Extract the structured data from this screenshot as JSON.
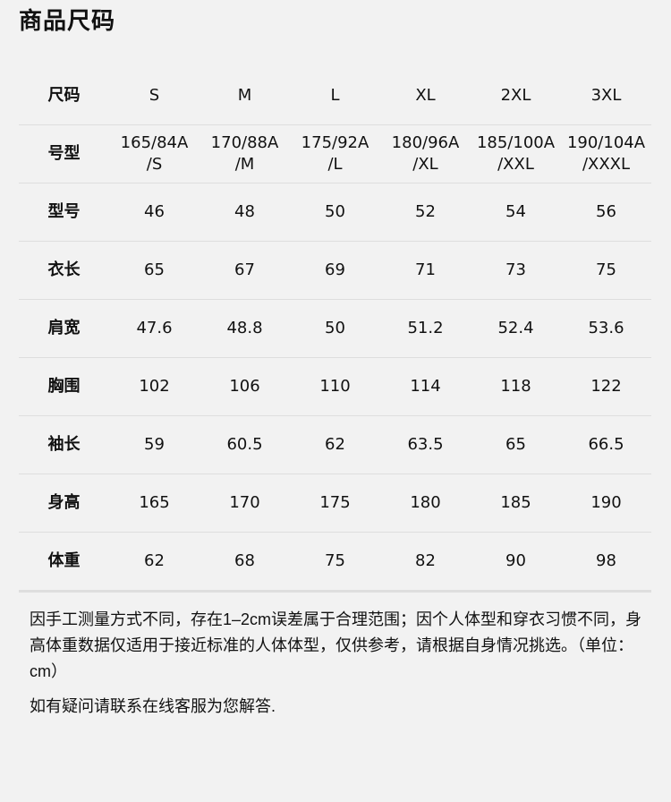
{
  "title": "商品尺码",
  "table": {
    "header": [
      "尺码",
      "S",
      "M",
      "L",
      "XL",
      "2XL",
      "3XL"
    ],
    "rows": [
      {
        "label": "号型",
        "values": [
          "165/84A\n/S",
          "170/88A\n/M",
          "175/92A\n/L",
          "180/96A\n/XL",
          "185/100A\n/XXL",
          "190/104A\n/XXXL"
        ]
      },
      {
        "label": "型号",
        "values": [
          "46",
          "48",
          "50",
          "52",
          "54",
          "56"
        ]
      },
      {
        "label": "衣长",
        "values": [
          "65",
          "67",
          "69",
          "71",
          "73",
          "75"
        ]
      },
      {
        "label": "肩宽",
        "values": [
          "47.6",
          "48.8",
          "50",
          "51.2",
          "52.4",
          "53.6"
        ]
      },
      {
        "label": "胸围",
        "values": [
          "102",
          "106",
          "110",
          "114",
          "118",
          "122"
        ]
      },
      {
        "label": "袖长",
        "values": [
          "59",
          "60.5",
          "62",
          "63.5",
          "65",
          "66.5"
        ]
      },
      {
        "label": "身高",
        "values": [
          "165",
          "170",
          "175",
          "180",
          "185",
          "190"
        ]
      },
      {
        "label": "体重",
        "values": [
          "62",
          "68",
          "75",
          "82",
          "90",
          "98"
        ]
      }
    ]
  },
  "notes": {
    "disclaimer": "因手工测量方式不同，存在1–2cm误差属于合理范围；因个人体型和穿衣习惯不同，身高体重数据仅适用于接近标准的人体体型，仅供参考，请根据自身情况挑选。（单位：cm）",
    "contact": "如有疑问请联系在线客服为您解答."
  }
}
